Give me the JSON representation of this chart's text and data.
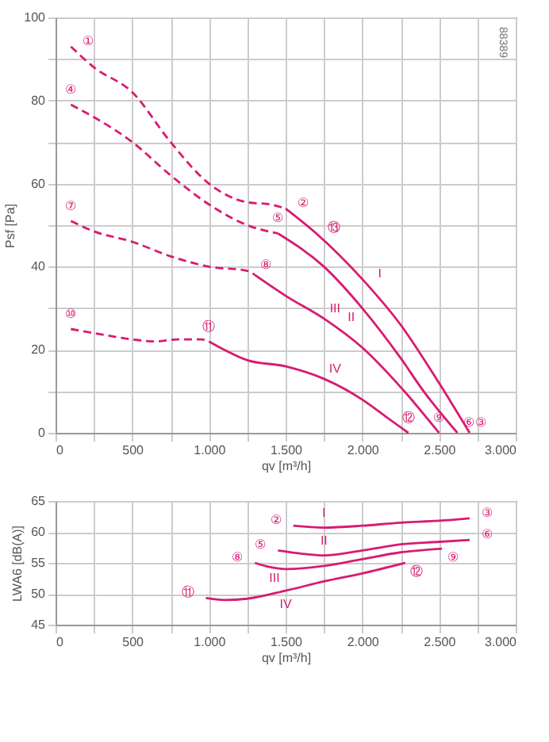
{
  "chart_data": [
    {
      "type": "line",
      "xlabel": "qv [m³/h]",
      "ylabel": "Psf [Pa]",
      "xlim": [
        0,
        3000
      ],
      "ylim": [
        0,
        100
      ],
      "grid": true,
      "xticks": [
        0,
        {
          "value": 250,
          "label": null
        },
        500,
        {
          "value": 750,
          "label": null
        },
        {
          "value": 1000,
          "label": "1.000"
        },
        {
          "value": 1250,
          "label": null
        },
        {
          "value": 1500,
          "label": "1.500"
        },
        {
          "value": 1750,
          "label": null
        },
        {
          "value": 2000,
          "label": "2.000"
        },
        {
          "value": 2250,
          "label": null
        },
        {
          "value": 2500,
          "label": "2.500"
        },
        {
          "value": 2750,
          "label": null
        },
        {
          "value": 3000,
          "label": "3.000"
        }
      ],
      "yticks": [
        0,
        {
          "value": 10,
          "label": null
        },
        20,
        {
          "value": 30,
          "label": null
        },
        40,
        {
          "value": 50,
          "label": null
        },
        60,
        {
          "value": 70,
          "label": null
        },
        80,
        {
          "value": 90,
          "label": null
        },
        100
      ],
      "series": [
        {
          "color": "#d81b72",
          "line_style": "dashed",
          "x": [
            100,
            250,
            500,
            750,
            1000,
            1250,
            1400,
            1500
          ],
          "values": [
            93,
            88,
            82,
            70,
            60,
            55.5,
            55,
            54
          ]
        },
        {
          "color": "#d81b72",
          "line_style": "solid",
          "x": [
            1500,
            1700,
            2000,
            2250,
            2500,
            2700
          ],
          "values": [
            54,
            48,
            37,
            26,
            12,
            0
          ]
        },
        {
          "color": "#d81b72",
          "line_style": "dashed",
          "x": [
            100,
            250,
            500,
            750,
            1000,
            1250,
            1450
          ],
          "values": [
            79,
            76,
            70,
            62,
            55,
            50,
            48
          ]
        },
        {
          "color": "#d81b72",
          "line_style": "solid",
          "x": [
            1450,
            1750,
            2000,
            2250,
            2400,
            2620
          ],
          "values": [
            48,
            40,
            30,
            18,
            10,
            0
          ]
        },
        {
          "color": "#d81b72",
          "line_style": "dashed",
          "x": [
            100,
            250,
            500,
            750,
            1000,
            1250,
            1300
          ],
          "values": [
            51,
            48.5,
            46,
            42.5,
            40,
            39,
            38
          ]
        },
        {
          "color": "#d81b72",
          "line_style": "solid",
          "x": [
            1300,
            1500,
            1750,
            2000,
            2250,
            2500
          ],
          "values": [
            38,
            33,
            27.5,
            20.5,
            11,
            0
          ]
        },
        {
          "color": "#d81b72",
          "line_style": "dashed",
          "x": [
            100,
            250,
            500,
            650,
            800,
            950,
            1000
          ],
          "values": [
            25,
            24,
            22.5,
            22,
            22.5,
            22.5,
            22
          ]
        },
        {
          "color": "#d81b72",
          "line_style": "solid",
          "x": [
            1000,
            1100,
            1250,
            1500,
            1750,
            2000,
            2150,
            2300
          ],
          "values": [
            22,
            20,
            17.5,
            16,
            13,
            8,
            4,
            0
          ]
        }
      ],
      "annotations": [
        "88389",
        {
          "text": "①",
          "x": 100,
          "y": 93
        },
        {
          "text": "②",
          "x": 1500,
          "y": 54
        },
        {
          "text": "③",
          "x": 2700,
          "y": 0
        },
        {
          "text": "④",
          "x": 100,
          "y": 79
        },
        {
          "text": "⑤",
          "x": 1450,
          "y": 48
        },
        {
          "text": "⑥",
          "x": 2620,
          "y": 0
        },
        {
          "text": "⑦",
          "x": 100,
          "y": 51
        },
        {
          "text": "⑧",
          "x": 1300,
          "y": 38
        },
        {
          "text": "⑨",
          "x": 2500,
          "y": 0
        },
        {
          "text": "⑩",
          "x": 100,
          "y": 25
        },
        {
          "text": "⑪",
          "x": 1000,
          "y": 22
        },
        {
          "text": "⑫",
          "x": 2300,
          "y": 0
        },
        {
          "text": "⑬",
          "x": 1700,
          "y": 48
        },
        {
          "text": "I",
          "x": 2000,
          "y": 37
        },
        {
          "text": "II",
          "x": 2000,
          "y": 30
        },
        {
          "text": "III",
          "x": 1750,
          "y": 27.5
        },
        {
          "text": "IV",
          "x": 1750,
          "y": 13
        }
      ]
    },
    {
      "type": "line",
      "xlabel": "qv [m³/h]",
      "ylabel": "LWA6 [dB(A)]",
      "xlim": [
        0,
        3000
      ],
      "ylim": [
        45,
        65
      ],
      "grid": true,
      "xticks": [
        0,
        {
          "value": 250,
          "label": null
        },
        500,
        {
          "value": 750,
          "label": null
        },
        {
          "value": 1000,
          "label": "1.000"
        },
        {
          "value": 1250,
          "label": null
        },
        {
          "value": 1500,
          "label": "1.500"
        },
        {
          "value": 1750,
          "label": null
        },
        {
          "value": 2000,
          "label": "2.000"
        },
        {
          "value": 2250,
          "label": null
        },
        {
          "value": 2500,
          "label": "2.500"
        },
        {
          "value": 2750,
          "label": null
        },
        {
          "value": 3000,
          "label": "3.000"
        }
      ],
      "yticks": [
        45,
        50,
        55,
        60,
        65
      ],
      "series": [
        {
          "color": "#d81b72",
          "line_style": "solid",
          "x": [
            1550,
            1750,
            2000,
            2250,
            2500,
            2700
          ],
          "values": [
            61,
            60.7,
            61,
            61.5,
            61.8,
            62.2
          ]
        },
        {
          "color": "#d81b72",
          "line_style": "solid",
          "x": [
            1450,
            1600,
            1750,
            2000,
            2250,
            2500,
            2700
          ],
          "values": [
            57,
            56.5,
            56.2,
            57,
            58,
            58.4,
            58.7
          ]
        },
        {
          "color": "#d81b72",
          "line_style": "solid",
          "x": [
            1300,
            1400,
            1500,
            1750,
            2000,
            2250,
            2520
          ],
          "values": [
            55,
            54.3,
            54,
            54.5,
            55.6,
            56.7,
            57.3
          ]
        },
        {
          "color": "#d81b72",
          "line_style": "solid",
          "x": [
            980,
            1100,
            1250,
            1500,
            1750,
            2000,
            2280
          ],
          "values": [
            49.3,
            49,
            49.2,
            50.5,
            52,
            53.3,
            55
          ]
        }
      ],
      "annotations": [
        {
          "text": "②",
          "x": 1550,
          "y": 61
        },
        {
          "text": "③",
          "x": 2700,
          "y": 62.2
        },
        {
          "text": "⑤",
          "x": 1450,
          "y": 57
        },
        {
          "text": "⑥",
          "x": 2700,
          "y": 58.7
        },
        {
          "text": "⑧",
          "x": 1300,
          "y": 55
        },
        {
          "text": "⑨",
          "x": 2520,
          "y": 57.3
        },
        {
          "text": "⑪",
          "x": 980,
          "y": 49.3
        },
        {
          "text": "⑫",
          "x": 2280,
          "y": 55
        },
        {
          "text": "I",
          "x": 1750,
          "y": 60.7
        },
        {
          "text": "II",
          "x": 1750,
          "y": 56.2
        },
        {
          "text": "III",
          "x": 1500,
          "y": 54
        },
        {
          "text": "IV",
          "x": 1500,
          "y": 50.5
        }
      ]
    }
  ]
}
